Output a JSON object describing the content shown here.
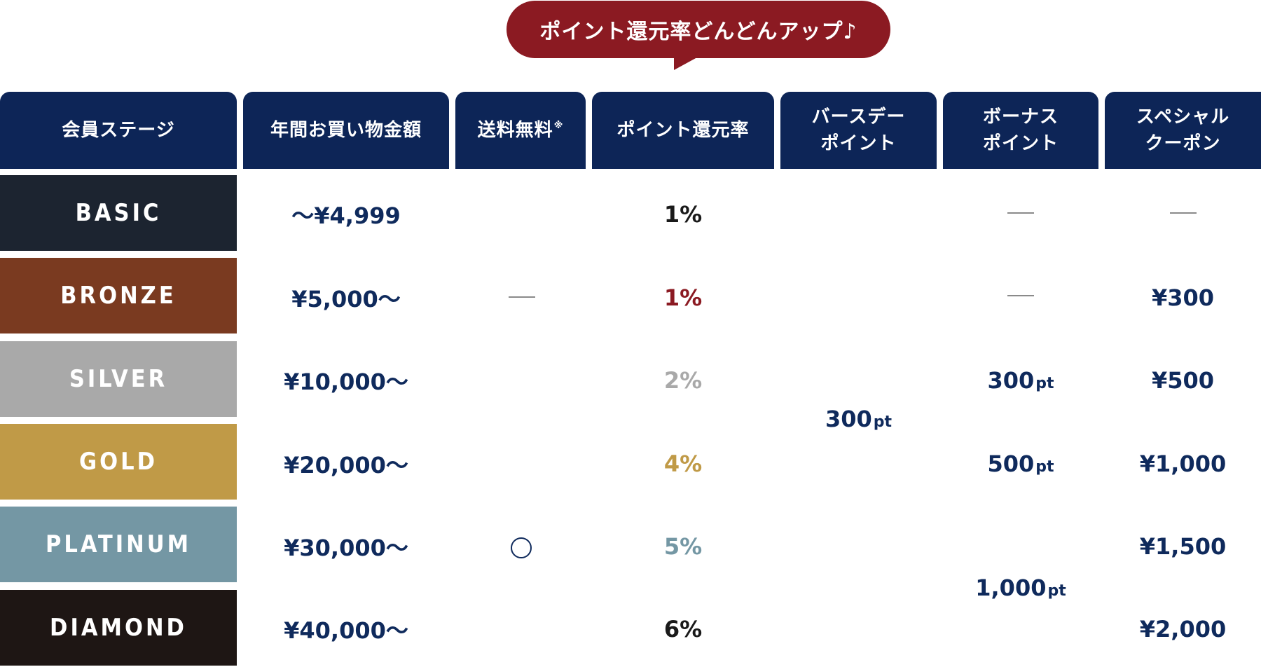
{
  "bubble": {
    "text": "ポイント還元率どんどんアップ♪"
  },
  "headers": {
    "stage": "会員ステージ",
    "amount": "年間お買い物金額",
    "shipping": "送料無料",
    "shipping_note": "※",
    "rate": "ポイント還元率",
    "birthday_line1": "バースデー",
    "birthday_line2": "ポイント",
    "bonus_line1": "ボーナス",
    "bonus_line2": "ポイント",
    "coupon_line1": "スペシャル",
    "coupon_line2": "クーポン"
  },
  "rows": [
    {
      "stage": "BASIC",
      "color": "#1c2430",
      "amount": "～¥4,999",
      "rate": "1%",
      "rate_color": "#1a1a1a",
      "coupon": ""
    },
    {
      "stage": "BRONZE",
      "color": "#7a3a20",
      "amount": "¥5,000～",
      "rate": "1%",
      "rate_color": "#8b1a22",
      "coupon": "¥300"
    },
    {
      "stage": "SILVER",
      "color": "#a9a9a9",
      "amount": "¥10,000～",
      "rate": "2%",
      "rate_color": "#a9a9a9",
      "coupon": "¥500"
    },
    {
      "stage": "GOLD",
      "color": "#c09a47",
      "amount": "¥20,000～",
      "rate": "4%",
      "rate_color": "#c09a47",
      "coupon": "¥1,000"
    },
    {
      "stage": "PLATINUM",
      "color": "#7497a4",
      "amount": "¥30,000～",
      "rate": "5%",
      "rate_color": "#7497a4",
      "coupon": "¥1,500"
    },
    {
      "stage": "DIAMOND",
      "color": "#1e1614",
      "amount": "¥40,000～",
      "rate": "6%",
      "rate_color": "#1a1a1a",
      "coupon": "¥2,000"
    }
  ],
  "birthday": {
    "value": "300",
    "unit": "pt"
  },
  "bonus": [
    {
      "value": "300",
      "unit": "pt"
    },
    {
      "value": "500",
      "unit": "pt"
    },
    {
      "value": "1,000",
      "unit": "pt"
    }
  ],
  "shipping_free_symbol": "○"
}
